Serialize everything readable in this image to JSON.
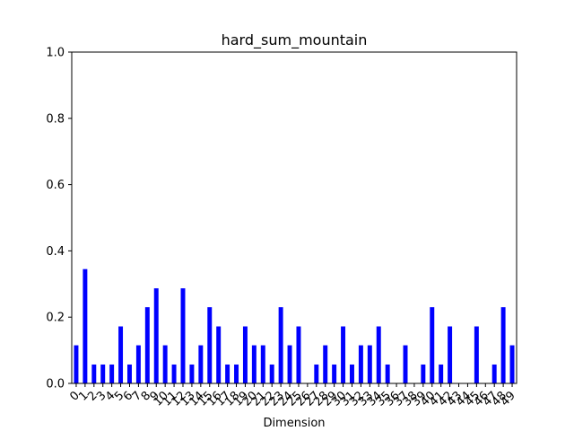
{
  "chart_data": {
    "type": "bar",
    "title": "hard_sum_mountain",
    "xlabel": "Dimension",
    "ylabel": "",
    "ylim": [
      0,
      1.0
    ],
    "yticks": [
      "0.0",
      "0.2",
      "0.4",
      "0.6",
      "0.8",
      "1.0"
    ],
    "categories": [
      "0",
      "1",
      "2",
      "3",
      "4",
      "5",
      "6",
      "7",
      "8",
      "9",
      "10",
      "11",
      "12",
      "13",
      "14",
      "15",
      "16",
      "17",
      "18",
      "19",
      "20",
      "21",
      "22",
      "23",
      "24",
      "25",
      "26",
      "27",
      "28",
      "29",
      "30",
      "31",
      "32",
      "33",
      "34",
      "35",
      "36",
      "37",
      "38",
      "39",
      "40",
      "41",
      "42",
      "43",
      "44",
      "45",
      "46",
      "47",
      "48",
      "49"
    ],
    "values": [
      0.115,
      0.345,
      0.057,
      0.057,
      0.057,
      0.172,
      0.057,
      0.115,
      0.23,
      0.287,
      0.115,
      0.057,
      0.287,
      0.057,
      0.115,
      0.23,
      0.172,
      0.057,
      0.057,
      0.172,
      0.115,
      0.115,
      0.057,
      0.23,
      0.115,
      0.172,
      0,
      0.057,
      0.115,
      0.057,
      0.172,
      0.057,
      0.115,
      0.115,
      0.172,
      0.057,
      0,
      0.115,
      0,
      0.057,
      0.23,
      0.057,
      0.172,
      0,
      0,
      0.172,
      0,
      0.057,
      0.23,
      0.115
    ],
    "bar_color": "#0000ff",
    "grid": false,
    "legend": "none"
  }
}
